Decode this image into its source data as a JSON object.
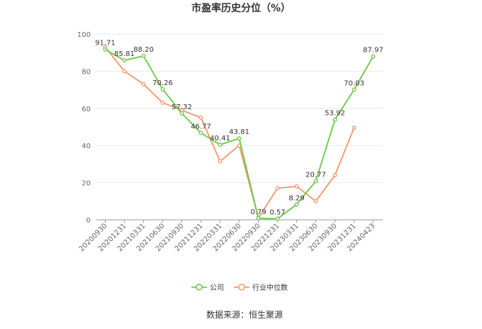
{
  "chart_data": {
    "type": "line",
    "title": "市盈率历史分位（%）",
    "source": "数据来源：恒生聚源",
    "x": [
      "20200930",
      "20201231",
      "20210331",
      "20210630",
      "20210930",
      "20211231",
      "20220331",
      "20220630",
      "20220930",
      "20221231",
      "20230331",
      "20230630",
      "20230930",
      "20231231",
      "20240423"
    ],
    "ylim": [
      0,
      100
    ],
    "yticks": [
      0,
      20,
      40,
      60,
      80,
      100
    ],
    "grid": true,
    "legend": "bottom",
    "series": [
      {
        "name": "公司",
        "color": "#6cc644",
        "values": [
          91.71,
          85.81,
          88.2,
          70.26,
          57.32,
          46.77,
          40.41,
          43.81,
          0.79,
          0.57,
          8.29,
          20.77,
          53.92,
          70.03,
          87.97
        ],
        "labels": [
          "91.71",
          "85.81",
          "88.20",
          "70.26",
          "57.32",
          "46.77",
          "40.41",
          "43.81",
          "0.79",
          "0.57",
          "8.29",
          "20.77",
          "53.92",
          "70.03",
          "87.97"
        ]
      },
      {
        "name": "行业中位数",
        "color": "#f4956b",
        "values": [
          93.0,
          80.0,
          73.0,
          63.0,
          59.0,
          55.0,
          31.5,
          40.0,
          1.0,
          17.0,
          18.0,
          10.0,
          24.0,
          49.5,
          null
        ]
      }
    ]
  }
}
